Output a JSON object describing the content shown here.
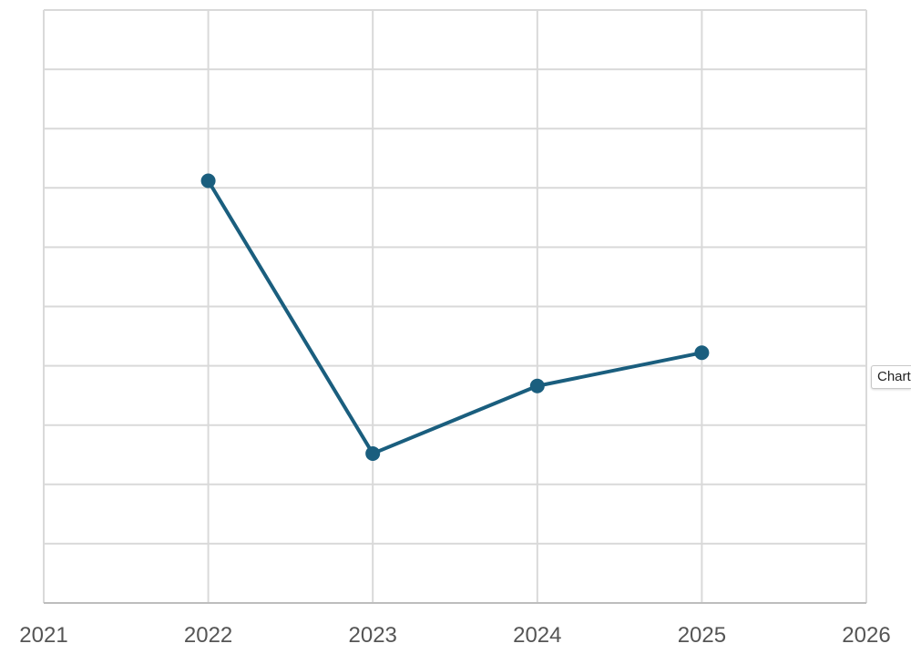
{
  "chart_data": {
    "type": "line",
    "x": [
      2022,
      2023,
      2024,
      2025
    ],
    "series": [
      {
        "values": [
          71.2,
          25.2,
          36.6,
          42.2
        ]
      }
    ],
    "x_ticks": [
      2021,
      2022,
      2023,
      2024,
      2025,
      2026
    ],
    "x_tick_labels": [
      "2021",
      "2022",
      "2023",
      "2024",
      "2025",
      "2026"
    ],
    "xlim": [
      2021,
      2026
    ],
    "ylim": [
      0,
      100
    ],
    "y_gridlines": 10,
    "grid": true,
    "legend": "none",
    "line_color": "#1a5e7e",
    "grid_color": "#d9d9d9"
  },
  "tooltip": {
    "label": "Chart"
  }
}
